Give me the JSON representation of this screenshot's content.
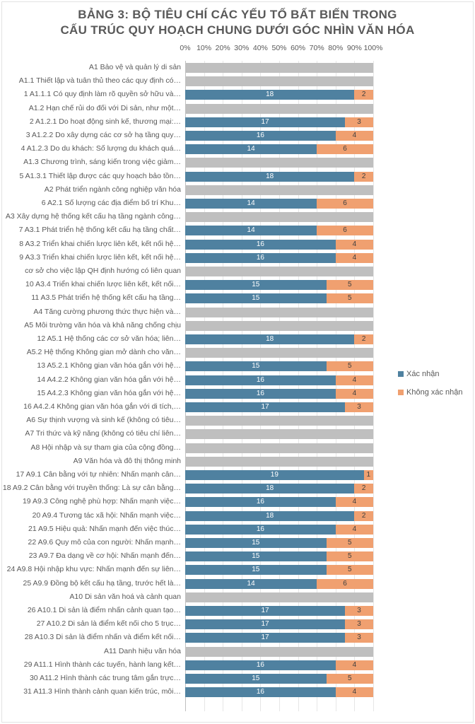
{
  "chart_data": {
    "type": "bar",
    "orientation": "horizontal",
    "stacked": "percent",
    "title": "BẢNG 3: BỘ TIÊU CHÍ CÁC YẾU TỐ BẤT BIẾN TRONG CẤU TRÚC QUY HOẠCH CHUNG DƯỚI GÓC NHÌN VĂN HÓA",
    "title_lines": [
      "BẢNG 3: BỘ TIÊU CHÍ CÁC YẾU TỐ BẤT BIẾN TRONG",
      "CẤU TRÚC QUY HOẠCH CHUNG DƯỚI GÓC NHÌN VĂN HÓA"
    ],
    "xlim": [
      0,
      100
    ],
    "x_ticks": [
      "0%",
      "10%",
      "20%",
      "30%",
      "40%",
      "50%",
      "60%",
      "70%",
      "80%",
      "90%",
      "100%"
    ],
    "x_axis_position": "top",
    "grid": true,
    "legend_position": "right",
    "colors": {
      "confirmed": "#4f81a0",
      "not_confirmed": "#f0a070",
      "header": "#bfbfbf"
    },
    "series_names": [
      "Xác nhận",
      "Không xác nhận"
    ],
    "rows": [
      {
        "label": "A1 Bảo vệ và quản lý di sản",
        "header": true
      },
      {
        "label": "A1.1 Thiết lập và tuân thủ theo các quy định có…",
        "header": true
      },
      {
        "label": "1 A1.1.1 Có quy định làm rõ quyền sở hữu và…",
        "values": [
          18,
          2
        ]
      },
      {
        "label": "A1.2 Hạn chế rủi do đối với Di sản, như một…",
        "header": true
      },
      {
        "label": "2 A1.2.1 Do hoạt động sinh kế, thương mại:…",
        "values": [
          17,
          3
        ]
      },
      {
        "label": "3 A1.2.2 Do xây dựng các cơ sở hạ tầng quy…",
        "values": [
          16,
          4
        ]
      },
      {
        "label": "4 A1.2.3 Do du khách: Số lượng du khách quá…",
        "values": [
          14,
          6
        ]
      },
      {
        "label": "A1.3 Chương trình, sáng kiến trong việc giảm…",
        "header": true
      },
      {
        "label": "5 A1.3.1 Thiết lập được các quy hoạch bảo tồn…",
        "values": [
          18,
          2
        ]
      },
      {
        "label": "A2 Phát triển ngành công nghiệp văn hóa",
        "header": true
      },
      {
        "label": "6 A2.1 Số lượng các địa điểm bố trí Khu…",
        "values": [
          14,
          6
        ]
      },
      {
        "label": "A3 Xây dựng hệ thống kết cấu hạ tầng ngành công…",
        "header": true
      },
      {
        "label": "7 A3.1 Phát triển hệ thống kết cấu hạ tầng chất…",
        "values": [
          14,
          6
        ]
      },
      {
        "label": "8 A3.2 Triển khai chiến lược liên kết, kết nối hệ…",
        "values": [
          16,
          4
        ]
      },
      {
        "label": "9 A3.3 Triển khai chiến lược liên kết, kết nối hệ…",
        "values": [
          16,
          4
        ]
      },
      {
        "label": "cơ sở cho việc lập QH định hướng có liên quan",
        "header": true
      },
      {
        "label": "10 A3.4 Triển khai chiến lược liên kết, kết nối…",
        "values": [
          15,
          5
        ]
      },
      {
        "label": "11 A3.5 Phát triển hệ thống kết cấu hạ tầng…",
        "values": [
          15,
          5
        ]
      },
      {
        "label": "A4 Tăng cường phương thức thực hiện và…",
        "header": true
      },
      {
        "label": "A5 Môi trường văn hóa và khả năng chống chịu",
        "header": true
      },
      {
        "label": "12 A5.1 Hệ thống các cơ sở văn hóa; liên…",
        "values": [
          18,
          2
        ]
      },
      {
        "label": "A5.2 Hệ thống Không gian mở dành cho văn…",
        "header": true
      },
      {
        "label": "13 A5.2.1 Không gian văn hóa gắn với hệ…",
        "values": [
          15,
          5
        ]
      },
      {
        "label": "14 A4.2.2 Không gian văn hóa gắn với hệ…",
        "values": [
          16,
          4
        ]
      },
      {
        "label": "15 A4.2.3 Không gian văn hóa gắn với hệ…",
        "values": [
          16,
          4
        ]
      },
      {
        "label": "16 A4.2.4 Không gian văn hóa gắn với di tích,…",
        "values": [
          17,
          3
        ]
      },
      {
        "label": "A6 Sự thịnh vượng và sinh kế (không có tiêu…",
        "header": true
      },
      {
        "label": "A7 Tri thức và kỹ năng (không có tiêu chí liên…",
        "header": true
      },
      {
        "label": "A8 Hội nhập và sự tham gia của cộng đồng…",
        "header": true
      },
      {
        "label": "A9 Văn hóa và đô thị thông minh",
        "header": true
      },
      {
        "label": "17 A9.1 Cân bằng với tự nhiên: Nhấn mạnh cân…",
        "values": [
          19,
          1
        ]
      },
      {
        "label": "18 A9.2 Cân bằng với truyền thống: Là sự cân bằng…",
        "values": [
          18,
          2
        ]
      },
      {
        "label": "19 A9.3 Công nghệ phù hợp: Nhấn mạnh việc…",
        "values": [
          16,
          4
        ]
      },
      {
        "label": "20 A9.4 Tương tác xã hội: Nhấn mạnh việc…",
        "values": [
          18,
          2
        ]
      },
      {
        "label": "21 A9.5 Hiệu quả: Nhấn mạnh đến việc thúc…",
        "values": [
          16,
          4
        ]
      },
      {
        "label": "22 A9.6 Quy mô của con người: Nhấn mạnh…",
        "values": [
          15,
          5
        ]
      },
      {
        "label": "23 A9.7 Đa dạng về cơ hội: Nhấn mạnh đến…",
        "values": [
          15,
          5
        ]
      },
      {
        "label": "24 A9.8 Hội nhập khu vực: Nhấn mạnh đến sự liên…",
        "values": [
          15,
          5
        ]
      },
      {
        "label": "25 A9.9 Đồng bộ kết cấu hạ tầng, trước hết là…",
        "values": [
          14,
          6
        ]
      },
      {
        "label": "A10 Di sản văn hoá và cảnh quan",
        "header": true
      },
      {
        "label": "26 A10.1 Di sản là điểm nhấn cảnh quan tạo…",
        "values": [
          17,
          3
        ]
      },
      {
        "label": "27 A10.2 Di sản là điểm kết nối cho 5 trục…",
        "values": [
          17,
          3
        ]
      },
      {
        "label": "28 A10.3 Di sản là điểm nhấn và điểm kết nối…",
        "values": [
          17,
          3
        ]
      },
      {
        "label": "A11 Danh hiệu văn hóa",
        "header": true
      },
      {
        "label": "29 A11.1 Hình thành các tuyến, hành lang kết…",
        "values": [
          16,
          4
        ]
      },
      {
        "label": "30 A11.2 Hình thành các trung tâm gắn trực…",
        "values": [
          15,
          5
        ]
      },
      {
        "label": "31 A11.3 Hình thành cảnh quan kiến trúc, môi…",
        "values": [
          16,
          4
        ]
      }
    ]
  }
}
